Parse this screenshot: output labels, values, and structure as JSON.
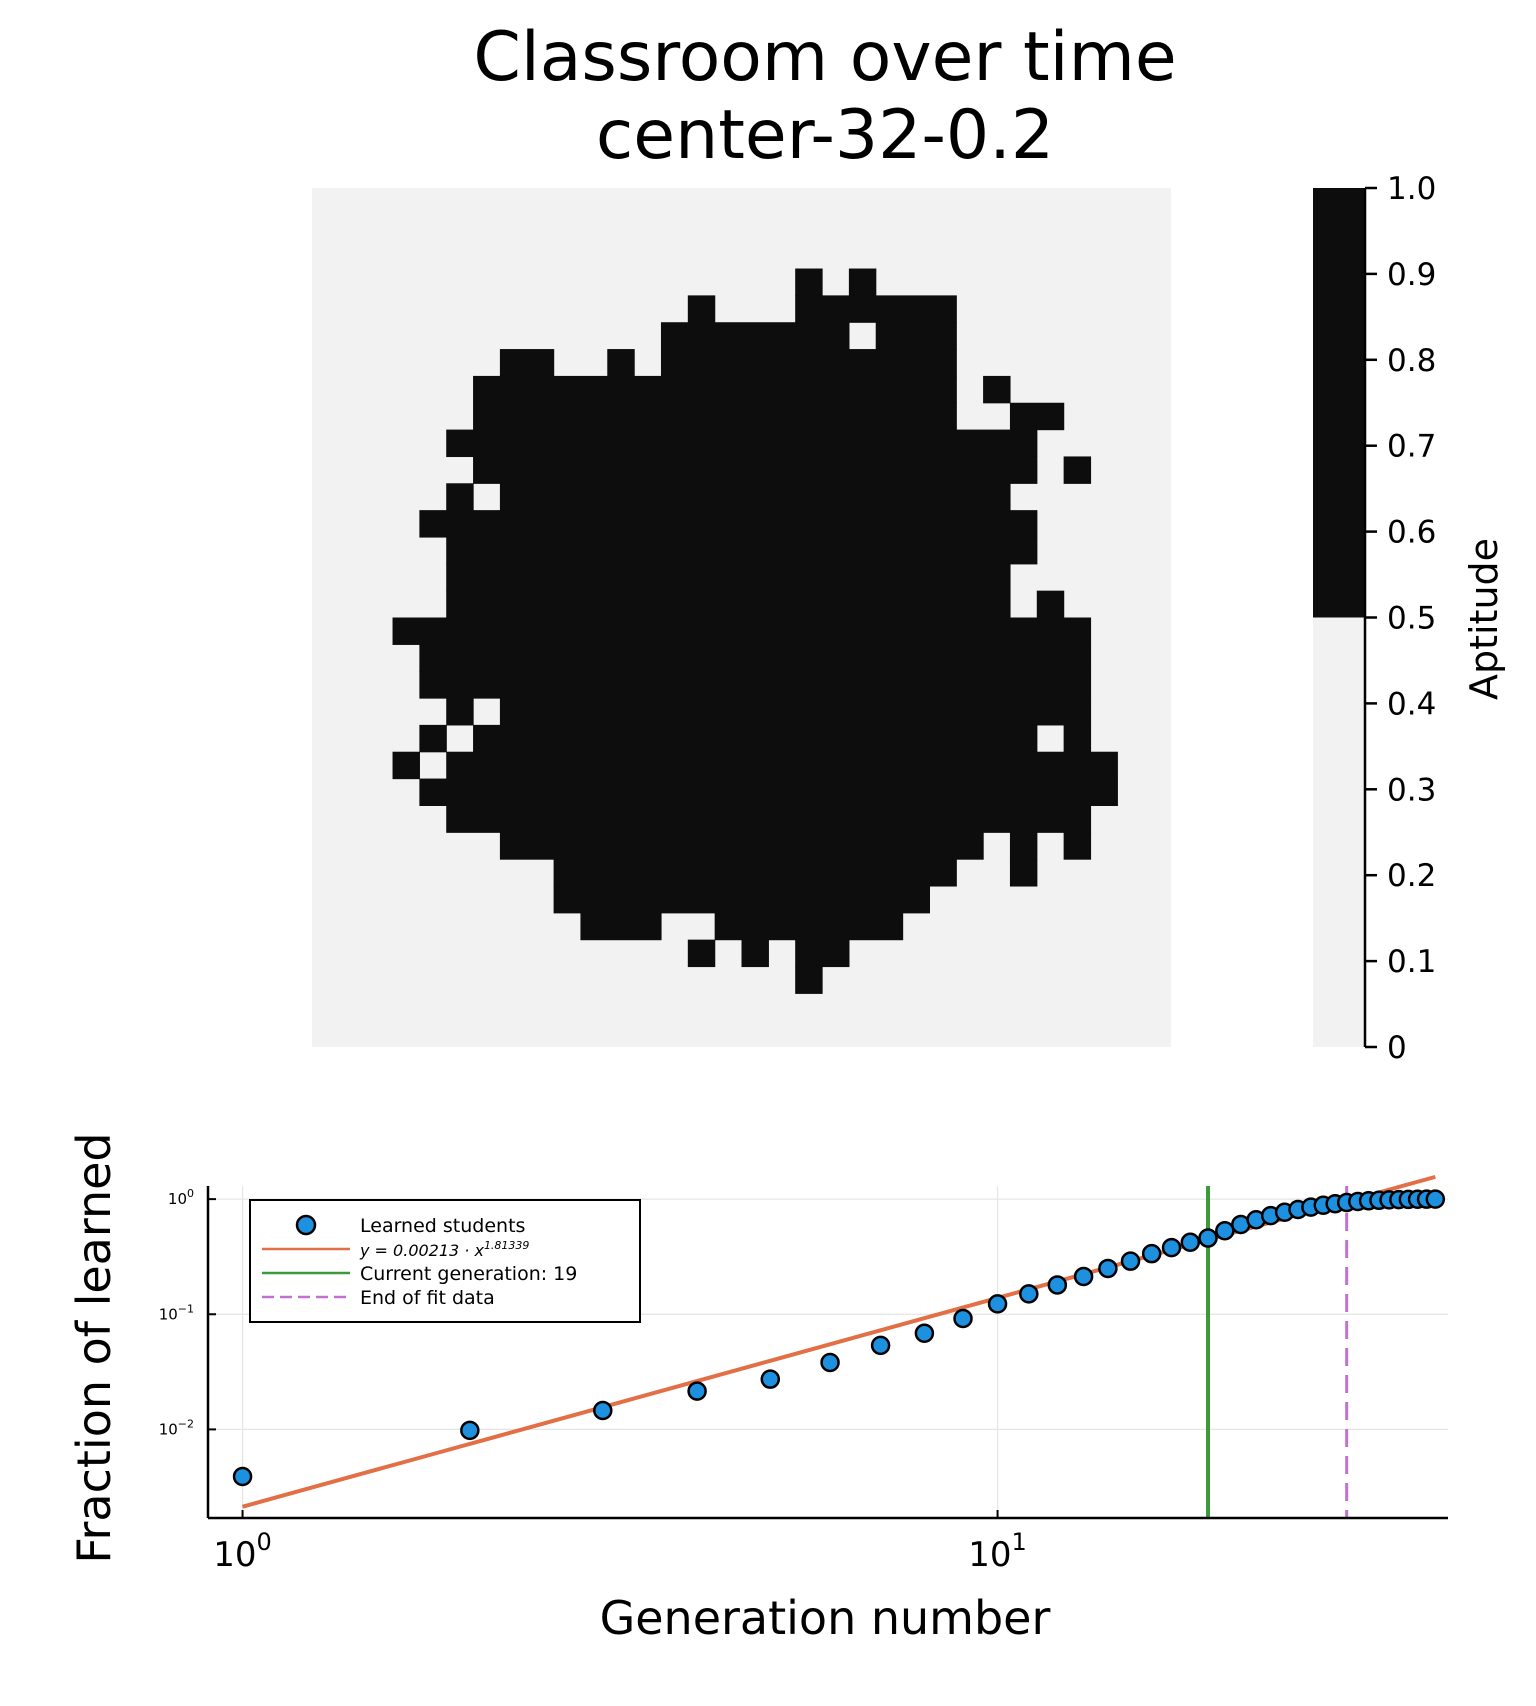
{
  "figure": {
    "title_line1": "Classroom over time",
    "title_line2": "center-32-0.2"
  },
  "chart_data": [
    {
      "type": "heatmap",
      "title": "Classroom over time center-32-0.2",
      "grid_size": [
        32,
        32
      ],
      "colorbar": {
        "label": "Aptitude",
        "ticks": [
          "0",
          "0.1",
          "0.2",
          "0.3",
          "0.4",
          "0.5",
          "0.6",
          "0.7",
          "0.8",
          "0.9",
          "1.0"
        ],
        "range": [
          0,
          1
        ],
        "threshold": 0.5,
        "low_color": "#f2f2f2",
        "high_color": "#0d0d0d"
      },
      "row_spans": [
        [],
        [],
        [],
        [
          [
            18,
            18
          ],
          [
            20,
            20
          ]
        ],
        [
          [
            14,
            14
          ],
          [
            18,
            23
          ]
        ],
        [
          [
            13,
            19
          ],
          [
            21,
            23
          ]
        ],
        [
          [
            7,
            8
          ],
          [
            11,
            11
          ],
          [
            13,
            23
          ]
        ],
        [
          [
            6,
            23
          ],
          [
            25,
            25
          ]
        ],
        [
          [
            6,
            23
          ],
          [
            26,
            27
          ]
        ],
        [
          [
            5,
            26
          ]
        ],
        [
          [
            6,
            26
          ],
          [
            28,
            28
          ]
        ],
        [
          [
            5,
            5
          ],
          [
            7,
            25
          ]
        ],
        [
          [
            4,
            26
          ]
        ],
        [
          [
            5,
            26
          ]
        ],
        [
          [
            5,
            25
          ]
        ],
        [
          [
            5,
            25
          ],
          [
            27,
            27
          ]
        ],
        [
          [
            3,
            28
          ]
        ],
        [
          [
            4,
            28
          ]
        ],
        [
          [
            4,
            28
          ]
        ],
        [
          [
            5,
            5
          ],
          [
            7,
            28
          ]
        ],
        [
          [
            4,
            4
          ],
          [
            6,
            26
          ],
          [
            28,
            28
          ]
        ],
        [
          [
            3,
            3
          ],
          [
            5,
            29
          ]
        ],
        [
          [
            4,
            29
          ]
        ],
        [
          [
            5,
            28
          ]
        ],
        [
          [
            7,
            24
          ],
          [
            26,
            26
          ],
          [
            28,
            28
          ]
        ],
        [
          [
            9,
            23
          ],
          [
            26,
            26
          ]
        ],
        [
          [
            9,
            22
          ]
        ],
        [
          [
            10,
            12
          ],
          [
            15,
            21
          ]
        ],
        [
          [
            14,
            14
          ],
          [
            16,
            16
          ],
          [
            18,
            19
          ]
        ],
        [
          [
            18,
            18
          ]
        ],
        [],
        []
      ]
    },
    {
      "type": "scatter",
      "xlabel": "Generation number",
      "ylabel": "Fraction of learned",
      "xscale": "log10",
      "yscale": "log10",
      "xlim": [
        0.9,
        39.5
      ],
      "ylim": [
        0.0017,
        1.3
      ],
      "x_ticks": [
        {
          "base": "10",
          "exp": "0",
          "value": 1
        },
        {
          "base": "10",
          "exp": "1",
          "value": 10
        }
      ],
      "y_ticks": [
        {
          "base": "10",
          "exp": "0",
          "value": 1
        },
        {
          "base": "10",
          "exp": "−1",
          "value": 0.1
        },
        {
          "base": "10",
          "exp": "−2",
          "value": 0.01
        }
      ],
      "grid": true,
      "legend_position": "top-left",
      "series": [
        {
          "name": "Learned students",
          "kind": "scatter",
          "color": "#1e90e0",
          "x": [
            1,
            2,
            3,
            4,
            5,
            6,
            7,
            8,
            9,
            10,
            11,
            12,
            13,
            14,
            15,
            16,
            17,
            18,
            19,
            20,
            21,
            22,
            23,
            24,
            25,
            26,
            27,
            28,
            29,
            30,
            31,
            32,
            33,
            34,
            35,
            36,
            37,
            38
          ],
          "y": [
            0.0039,
            0.0098,
            0.0146,
            0.0215,
            0.0273,
            0.0381,
            0.0537,
            0.0684,
            0.0918,
            0.123,
            0.1504,
            0.1797,
            0.2129,
            0.25,
            0.2891,
            0.3359,
            0.3789,
            0.4219,
            0.459,
            0.5312,
            0.6025,
            0.6621,
            0.7188,
            0.7695,
            0.8125,
            0.8516,
            0.8848,
            0.9121,
            0.9355,
            0.9531,
            0.9668,
            0.9766,
            0.9844,
            0.9902,
            0.9941,
            0.9971,
            0.999,
            1.0
          ]
        },
        {
          "name": "y = 0.00213 · x^1.81339",
          "legend_prefix": "y = 0.00213 · x",
          "legend_exp": "1.81339",
          "kind": "fit",
          "color": "#e26f46",
          "coefficient": 0.00213,
          "exponent": 1.81339,
          "x_range": [
            1,
            38
          ]
        },
        {
          "name": "Current generation: 19",
          "kind": "vline",
          "color": "#3a9a3a",
          "x": 19
        },
        {
          "name": "End of fit data",
          "kind": "vline-dashed",
          "color": "#c271d2",
          "x": 29
        }
      ]
    }
  ]
}
